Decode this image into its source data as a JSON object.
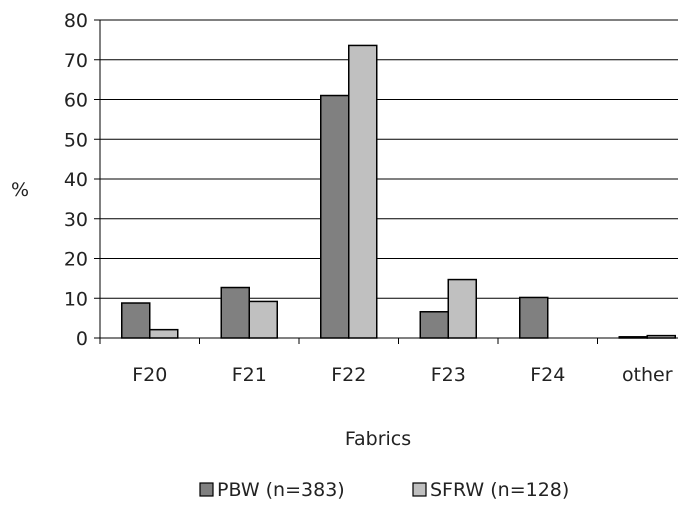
{
  "chart_data": {
    "type": "bar",
    "title": "",
    "xlabel": "Fabrics",
    "ylabel": "%",
    "categories": [
      "F20",
      "F21",
      "F22",
      "F23",
      "F24",
      "other"
    ],
    "series": [
      {
        "name": "PBW (n=383)",
        "values": [
          8.8,
          12.7,
          61.0,
          6.6,
          10.2,
          0.3
        ],
        "color": "#808080"
      },
      {
        "name": "SFRW (n=128)",
        "values": [
          2.1,
          9.2,
          73.6,
          14.7,
          0.0,
          0.6
        ],
        "color": "#c0c0c0"
      }
    ],
    "ylim": [
      0,
      80
    ],
    "yticks": [
      "0",
      "10",
      "20",
      "30",
      "40",
      "50",
      "60",
      "70",
      "80"
    ],
    "grid": true,
    "legend": "bottom"
  }
}
